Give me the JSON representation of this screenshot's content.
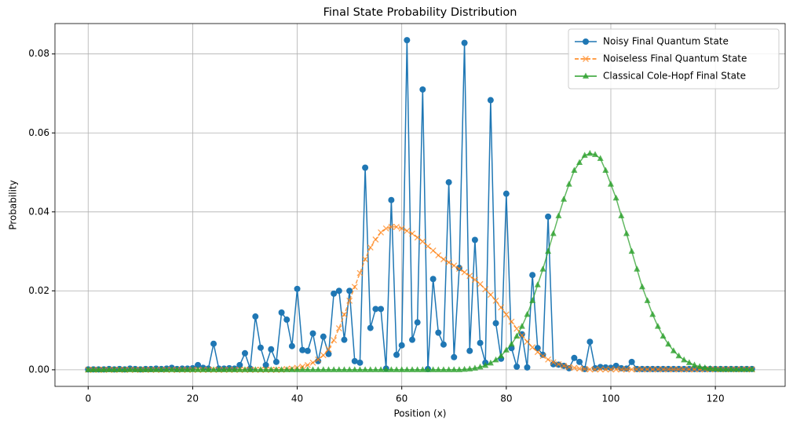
{
  "chart_data": {
    "type": "line",
    "title": "Final State Probability Distribution",
    "xlabel": "Position (x)",
    "ylabel": "Probability",
    "x": [
      0,
      1,
      2,
      3,
      4,
      5,
      6,
      7,
      8,
      9,
      10,
      11,
      12,
      13,
      14,
      15,
      16,
      17,
      18,
      19,
      20,
      21,
      22,
      23,
      24,
      25,
      26,
      27,
      28,
      29,
      30,
      31,
      32,
      33,
      34,
      35,
      36,
      37,
      38,
      39,
      40,
      41,
      42,
      43,
      44,
      45,
      46,
      47,
      48,
      49,
      50,
      51,
      52,
      53,
      54,
      55,
      56,
      57,
      58,
      59,
      60,
      61,
      62,
      63,
      64,
      65,
      66,
      67,
      68,
      69,
      70,
      71,
      72,
      73,
      74,
      75,
      76,
      77,
      78,
      79,
      80,
      81,
      82,
      83,
      84,
      85,
      86,
      87,
      88,
      89,
      90,
      91,
      92,
      93,
      94,
      95,
      96,
      97,
      98,
      99,
      100,
      101,
      102,
      103,
      104,
      105,
      106,
      107,
      108,
      109,
      110,
      111,
      112,
      113,
      114,
      115,
      116,
      117,
      118,
      119,
      120,
      121,
      122,
      123,
      124,
      125,
      126,
      127
    ],
    "series": [
      {
        "name": "Noisy Final Quantum State",
        "color": "#1f77b4",
        "marker": "circle",
        "dashed": false,
        "values": [
          0.0001,
          0.0001,
          0.0001,
          0.0001,
          0.0002,
          0.0001,
          0.0002,
          0.0001,
          0.0003,
          0.0002,
          0.0001,
          0.0002,
          0.0002,
          0.0003,
          0.0002,
          0.0003,
          0.0005,
          0.0002,
          0.0003,
          0.0003,
          0.0004,
          0.0012,
          0.0005,
          0.0003,
          0.0066,
          0.0003,
          0.0003,
          0.0004,
          0.0003,
          0.0012,
          0.0042,
          0.0003,
          0.0135,
          0.0056,
          0.0012,
          0.0052,
          0.002,
          0.0145,
          0.0127,
          0.006,
          0.0205,
          0.005,
          0.0048,
          0.0092,
          0.0022,
          0.0084,
          0.004,
          0.0193,
          0.02,
          0.0076,
          0.02,
          0.0022,
          0.0018,
          0.0512,
          0.0106,
          0.0154,
          0.0154,
          0.0003,
          0.043,
          0.0038,
          0.0062,
          0.0835,
          0.0076,
          0.012,
          0.071,
          0.0002,
          0.023,
          0.0094,
          0.0064,
          0.0475,
          0.0032,
          0.0258,
          0.0828,
          0.0048,
          0.0329,
          0.0068,
          0.0018,
          0.0683,
          0.0118,
          0.0028,
          0.0446,
          0.0055,
          0.0008,
          0.009,
          0.0006,
          0.024,
          0.0055,
          0.0038,
          0.0388,
          0.0014,
          0.0013,
          0.001,
          0.0004,
          0.003,
          0.002,
          0.0002,
          0.0071,
          0.0004,
          0.0007,
          0.0006,
          0.0005,
          0.001,
          0.0004,
          0.0003,
          0.002,
          0.0002,
          0.0002,
          0.0002,
          0.0002,
          0.0002,
          0.0002,
          0.0002,
          0.0002,
          0.0002,
          0.0002,
          0.0002,
          0.0002,
          0.0002,
          0.0002,
          0.0002,
          0.0002,
          0.0002,
          0.0002,
          0.0002,
          0.0002,
          0.0002,
          0.0002,
          0.0002
        ]
      },
      {
        "name": "Noiseless Final Quantum State",
        "color": "#ff7f0e",
        "marker": "x",
        "dashed": true,
        "values": [
          0,
          0,
          0,
          0,
          0,
          0,
          0,
          0,
          0,
          0,
          0,
          0,
          0,
          0,
          0,
          0,
          0,
          0,
          0,
          0,
          0,
          0,
          0,
          0,
          0,
          0,
          0,
          0,
          0,
          0,
          0,
          0,
          0,
          0,
          0,
          0,
          0,
          0,
          0.0002,
          0.0003,
          0.0005,
          0.0008,
          0.0012,
          0.0018,
          0.0026,
          0.0037,
          0.0052,
          0.0075,
          0.0105,
          0.014,
          0.0175,
          0.021,
          0.0245,
          0.028,
          0.031,
          0.033,
          0.0348,
          0.0358,
          0.0362,
          0.0362,
          0.0358,
          0.0352,
          0.0345,
          0.0335,
          0.0325,
          0.0313,
          0.0302,
          0.029,
          0.028,
          0.0272,
          0.0264,
          0.0256,
          0.0247,
          0.0238,
          0.0228,
          0.0217,
          0.0204,
          0.019,
          0.0175,
          0.0158,
          0.014,
          0.0122,
          0.0104,
          0.0087,
          0.0071,
          0.0057,
          0.0045,
          0.0035,
          0.0026,
          0.0019,
          0.0014,
          0.001,
          0.0007,
          0.0005,
          0.0003,
          0.0002,
          0.0001,
          0.0001,
          0.0001,
          0.0001,
          0.0001,
          0.0001,
          0.0001,
          0.0001,
          0.0001,
          0.0001,
          0.0001,
          0.0001,
          0.0001,
          0.0001,
          0.0001,
          0.0001,
          0.0001,
          0.0001,
          0.0001,
          0.0001,
          0.0001,
          0.0001,
          0.0001,
          0.0001,
          0.0001,
          0.0001,
          0.0001,
          0.0001,
          0.0001,
          0.0001,
          0.0001,
          0.0001
        ]
      },
      {
        "name": "Classical Cole-Hopf Final State",
        "color": "#2ca02c",
        "marker": "triangle",
        "dashed": false,
        "values": [
          0,
          0,
          0,
          0,
          0,
          0,
          0,
          0,
          0,
          0,
          0,
          0,
          0,
          0,
          0,
          0,
          0,
          0,
          0,
          0,
          0,
          0,
          0,
          0,
          0,
          0,
          0,
          0,
          0,
          0,
          0,
          0,
          0,
          0,
          0,
          0,
          0,
          0,
          0,
          0,
          0,
          0,
          0,
          0,
          0,
          0,
          0,
          0,
          0,
          0,
          0,
          0,
          0,
          0,
          0,
          0,
          0,
          0,
          0,
          0,
          0,
          0,
          0,
          0,
          0,
          0,
          0,
          0,
          0,
          0,
          0,
          0,
          0.0001,
          0.0002,
          0.0004,
          0.0007,
          0.0011,
          0.0017,
          0.0025,
          0.0035,
          0.005,
          0.0065,
          0.0085,
          0.011,
          0.014,
          0.0175,
          0.0215,
          0.0255,
          0.03,
          0.0345,
          0.039,
          0.0432,
          0.047,
          0.0505,
          0.0525,
          0.0543,
          0.0548,
          0.0545,
          0.0535,
          0.0505,
          0.047,
          0.0435,
          0.039,
          0.0345,
          0.03,
          0.0255,
          0.021,
          0.0175,
          0.014,
          0.011,
          0.0085,
          0.0065,
          0.0048,
          0.0035,
          0.0025,
          0.0018,
          0.0012,
          0.0008,
          0.0005,
          0.0003,
          0.0002,
          0.0001,
          0.0001,
          0.0001,
          0.0001,
          0.0001,
          0.0001,
          0.0001
        ]
      }
    ],
    "xlim": [
      -6.35,
      133.35
    ],
    "ylim": [
      -0.0042,
      0.0877
    ],
    "xticks": [
      0,
      20,
      40,
      60,
      80,
      100,
      120
    ],
    "yticks": [
      {
        "value": 0,
        "label": "0.00"
      },
      {
        "value": 0.02,
        "label": "0.02"
      },
      {
        "value": 0.04,
        "label": "0.04"
      },
      {
        "value": 0.06,
        "label": "0.06"
      },
      {
        "value": 0.08,
        "label": "0.08"
      }
    ],
    "grid": true,
    "legend": "upper right"
  }
}
